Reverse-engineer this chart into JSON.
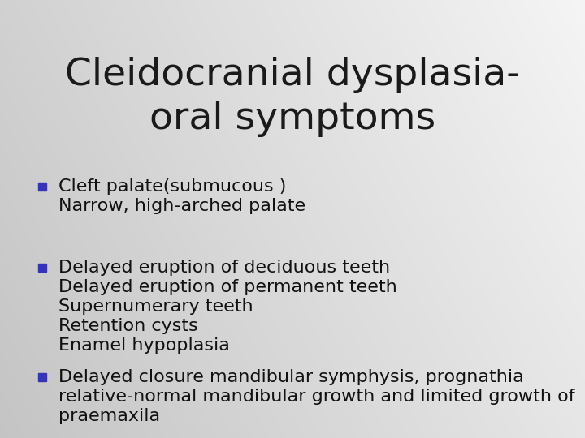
{
  "title_line1": "Cleidocranial dysplasia-",
  "title_line2": "oral symptoms",
  "background_left": "#c8c8d0",
  "background_right": "#f0f0f4",
  "title_color": "#1a1a1a",
  "title_fontsize": 34,
  "bullet_color": "#3333bb",
  "text_color": "#111111",
  "body_fontsize": 16,
  "bullets": [
    {
      "first_line": "Cleft palate(submucous )",
      "sub_lines": [
        "Narrow, high-arched palate"
      ]
    },
    {
      "first_line": "Delayed eruption of deciduous teeth",
      "sub_lines": [
        "Delayed eruption of permanent teeth",
        "Supernumerary teeth",
        "Retention cysts",
        "Enamel hypoplasia"
      ]
    },
    {
      "first_line": "Delayed closure mandibular symphysis, prognathia",
      "sub_lines": [
        "relative-normal mandibular growth and limited growth of",
        "praemaxila"
      ]
    }
  ]
}
